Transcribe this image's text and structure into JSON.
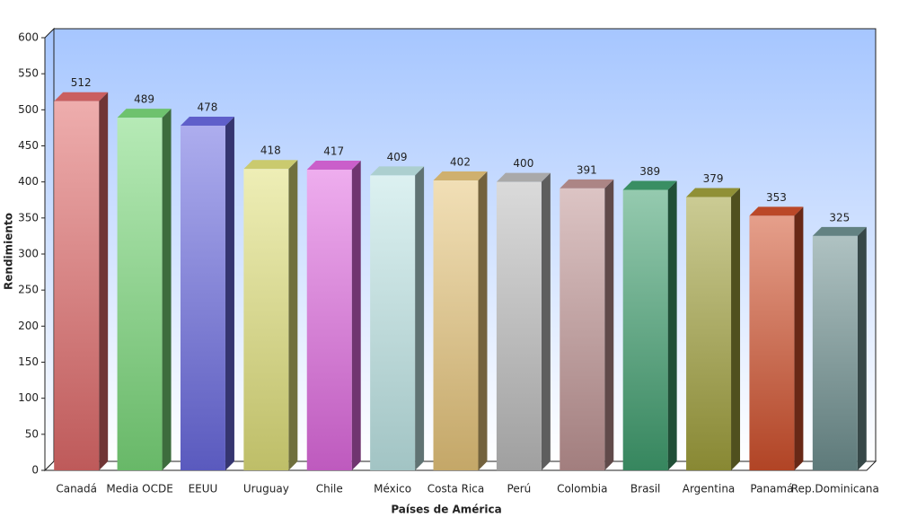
{
  "chart_data": {
    "type": "bar",
    "x_label": "Países de América",
    "y_label": "Rendimiento",
    "categories": [
      "Canadá",
      "Media OCDE",
      "EEUU",
      "Uruguay",
      "Chile",
      "México",
      "Costa Rica",
      "Perú",
      "Colombia",
      "Brasil",
      "Argentina",
      "Panamá",
      "Rep.Dominicana"
    ],
    "values": [
      512,
      489,
      478,
      418,
      417,
      409,
      402,
      400,
      391,
      389,
      379,
      353,
      325
    ],
    "colors": [
      "#e06a6a",
      "#7ad87a",
      "#6a6ae0",
      "#e0e07a",
      "#e06ae0",
      "#bfe6e6",
      "#e6c47a",
      "#bcbcbc",
      "#bf9494",
      "#3f9e6e",
      "#a0a03c",
      "#d0502c",
      "#6e9090"
    ],
    "ylim": [
      0,
      600
    ],
    "yticks": [
      0,
      50,
      100,
      150,
      200,
      250,
      300,
      350,
      400,
      450,
      500,
      550,
      600
    ]
  }
}
